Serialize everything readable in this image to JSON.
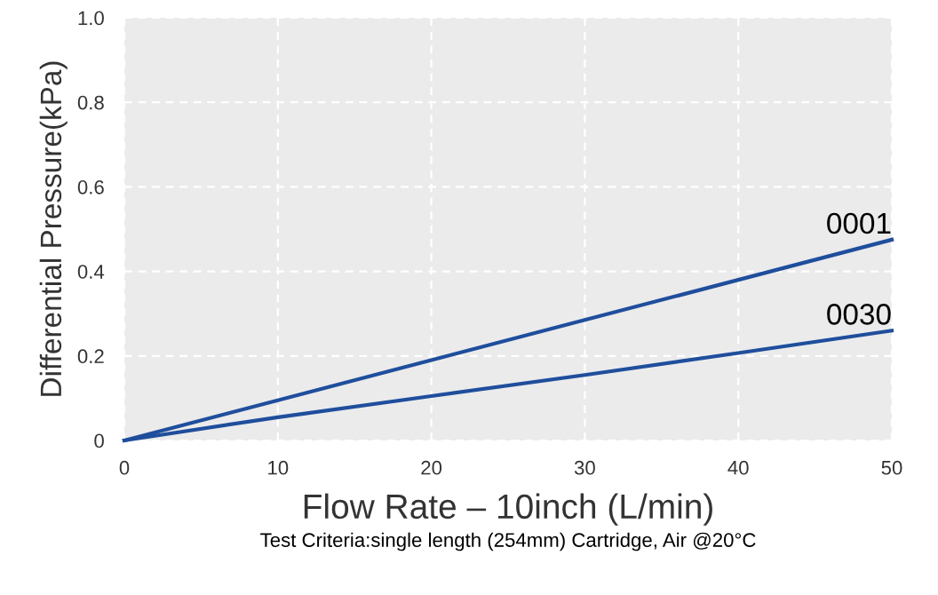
{
  "chart_data": {
    "type": "line",
    "xlabel": "Flow Rate – 10inch (L/min)",
    "ylabel": "Differential Pressure(kPa)",
    "annotations": [
      "Test Criteria:single length (254mm) Cartridge, Air @20°C"
    ],
    "x": [
      0,
      10,
      20,
      30,
      40,
      50
    ],
    "series": [
      {
        "name": "0001",
        "color": "#1f4e9c",
        "values": [
          0,
          0.095,
          0.19,
          0.285,
          0.38,
          0.475
        ]
      },
      {
        "name": "0030",
        "color": "#1f4e9c",
        "values": [
          0,
          0.055,
          0.105,
          0.155,
          0.207,
          0.26
        ]
      }
    ],
    "xlim": [
      0,
      50
    ],
    "ylim": [
      0,
      1.0
    ],
    "xticks": [
      0,
      10,
      20,
      30,
      40,
      50
    ],
    "yticks": [
      0,
      {
        "value": 0.2,
        "label": "0.2"
      },
      {
        "value": 0.4,
        "label": "0.4"
      },
      {
        "value": 0.6,
        "label": "0.6"
      },
      {
        "value": 0.8,
        "label": "0.8"
      },
      {
        "value": 1.0,
        "label": "1.0"
      }
    ],
    "grid": true,
    "legend": false,
    "marker": "none",
    "line_style": "solid"
  }
}
